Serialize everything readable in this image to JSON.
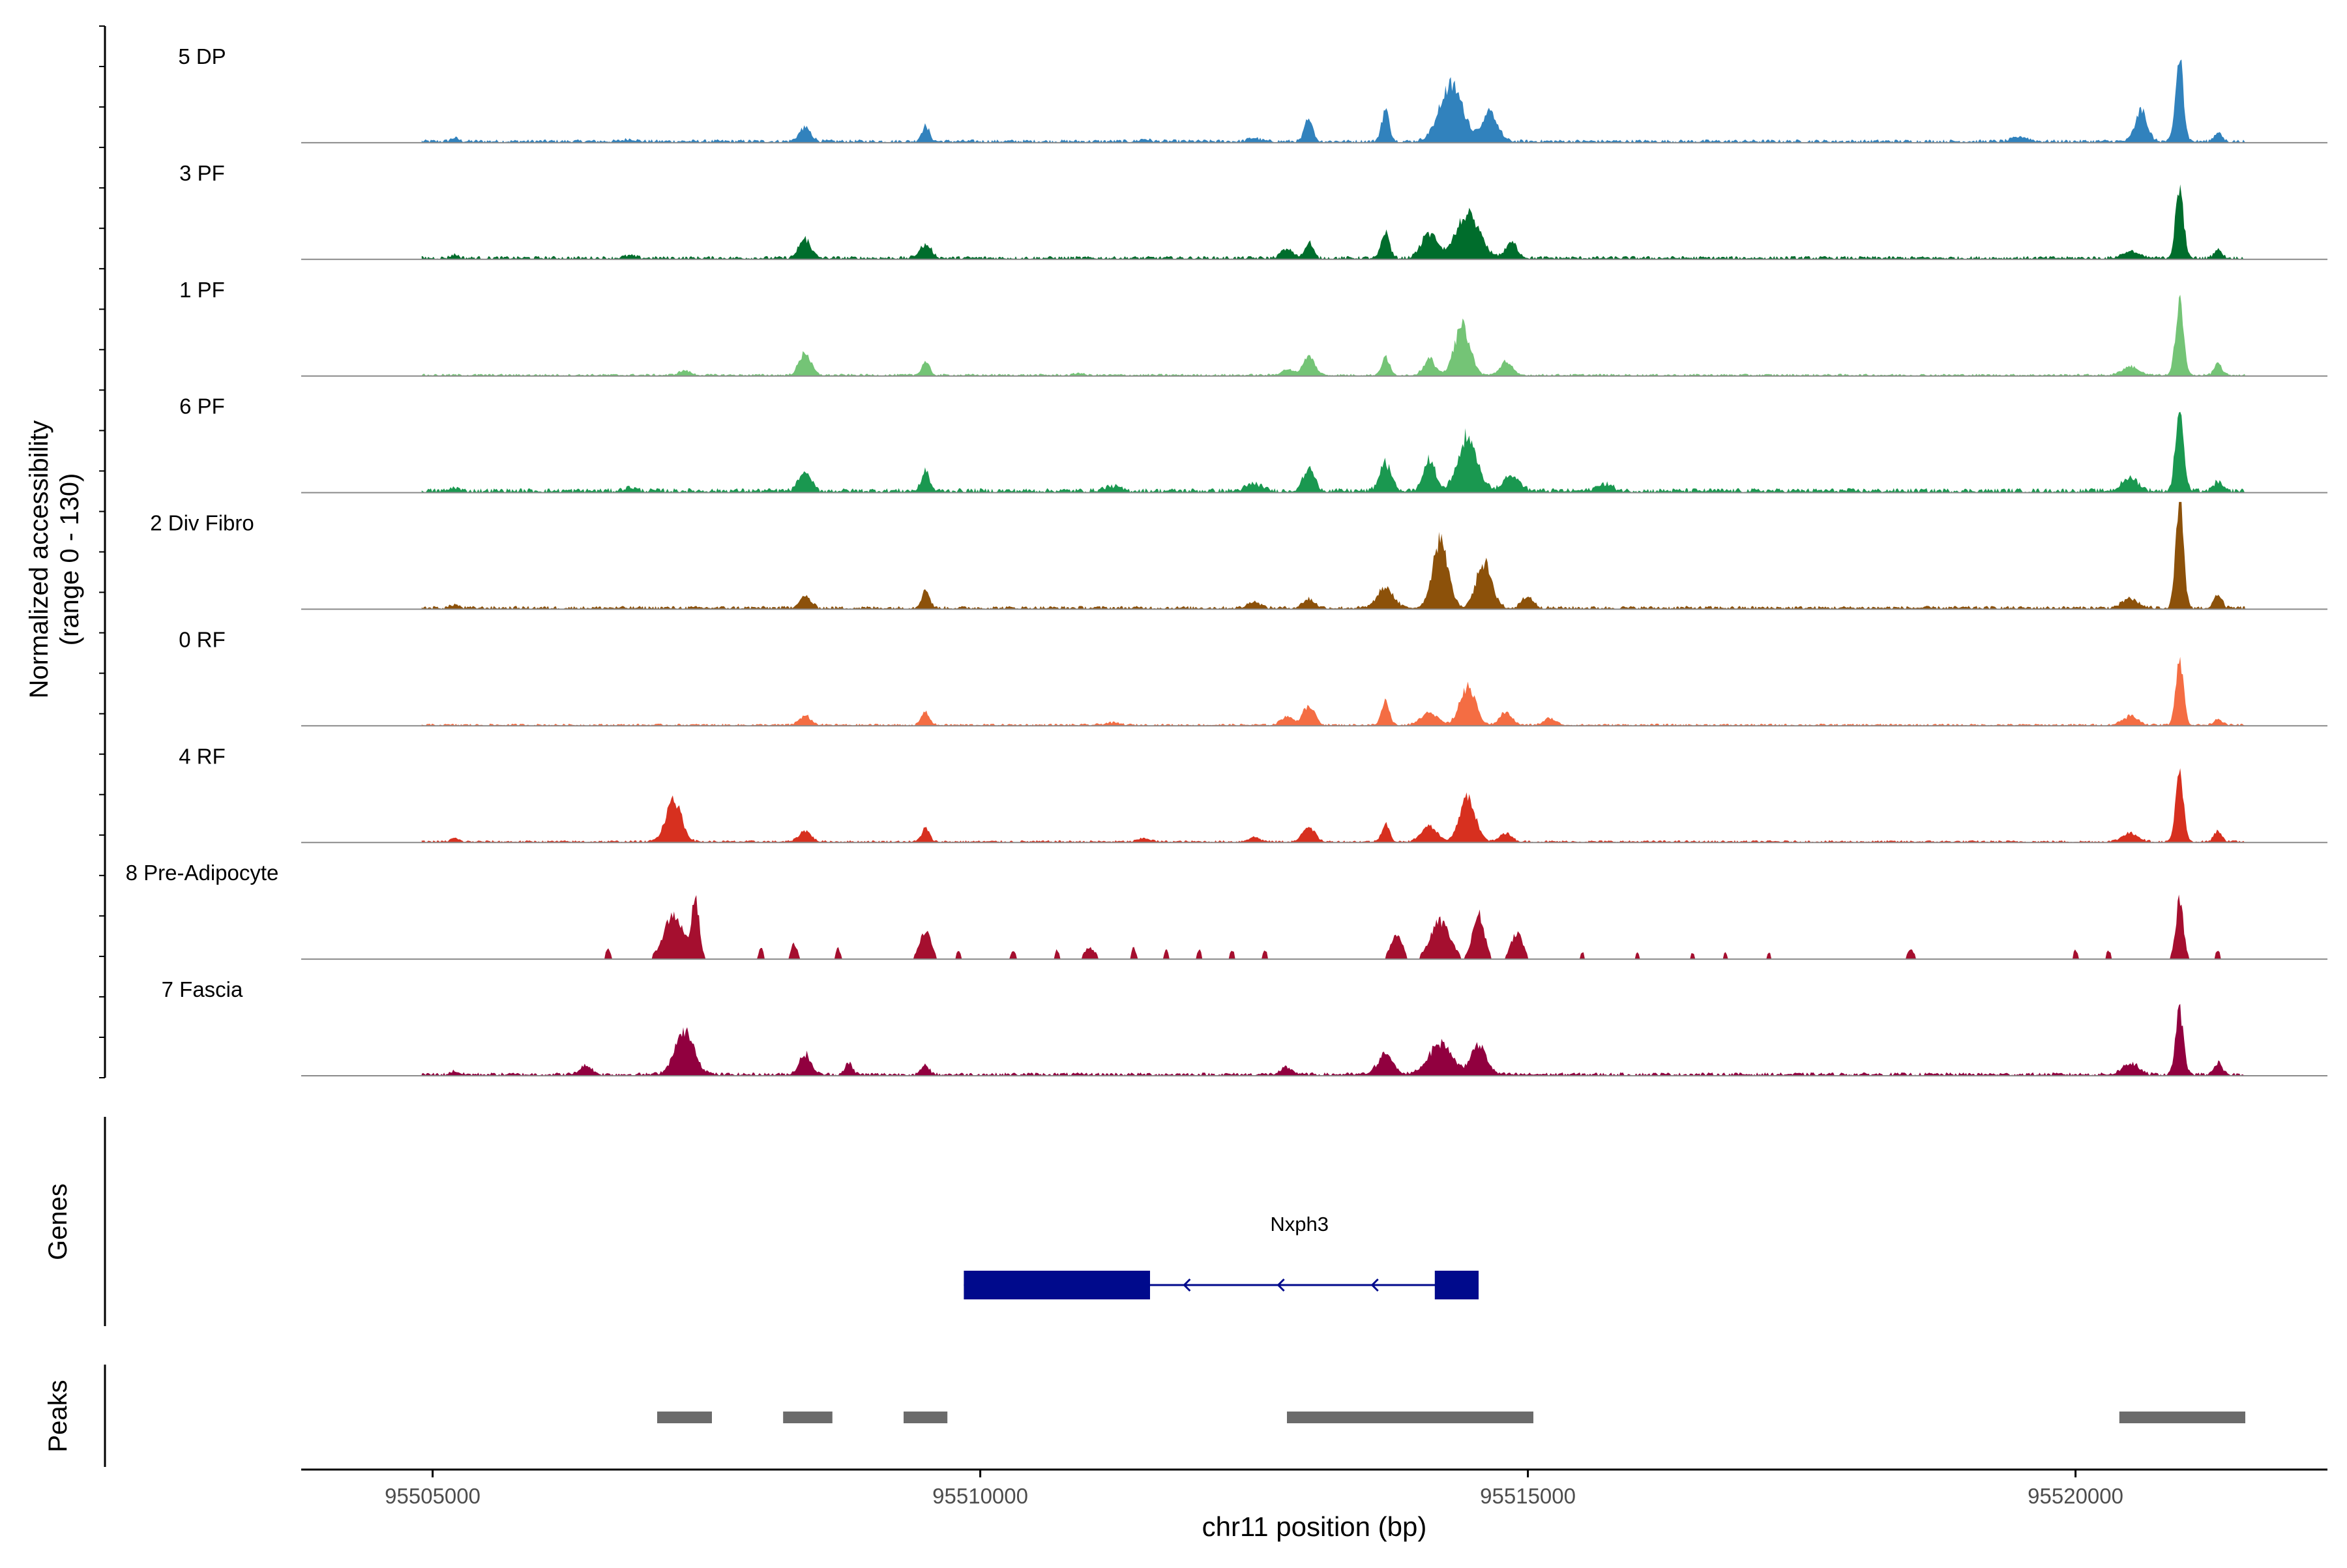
{
  "chart_data": {
    "type": "area",
    "title": "",
    "xlabel": "chr11 position (bp)",
    "ylabel_line1": "Normalized accessibility",
    "ylabel_line2": "(range 0 - 130)",
    "ylim": [
      0,
      130
    ],
    "xlim": [
      95503800,
      95522300
    ],
    "x_ticks": [
      95505000,
      95510000,
      95515000,
      95520000
    ],
    "x_tick_labels": [
      "95505000",
      "95510000",
      "95515000",
      "95520000"
    ],
    "genes_label": "Genes",
    "peaks_label": "Peaks",
    "gene": {
      "name": "Nxph3",
      "strand": "-",
      "start": 95509850,
      "end": 95514550,
      "exons": [
        [
          95509850,
          95511550
        ],
        [
          95514150,
          95514550
        ]
      ],
      "color": "#000a8c"
    },
    "peaks": [
      [
        95507050,
        95507550
      ],
      [
        95508200,
        95508650
      ],
      [
        95509300,
        95509700
      ],
      [
        95512800,
        95515050
      ],
      [
        95520400,
        95521550
      ]
    ],
    "peak_color": "#6b6b6b",
    "signal_start": 95504900,
    "signal_end": 95521550,
    "tracks": [
      {
        "name": "5 DP",
        "color": "#3182bd",
        "noise": 3,
        "background_extent": [
          95504900,
          95521550
        ],
        "peaks": [
          [
            95505200,
            100,
            3
          ],
          [
            95506800,
            150,
            2
          ],
          [
            95508400,
            150,
            12
          ],
          [
            95509500,
            100,
            14
          ],
          [
            95511500,
            120,
            2
          ],
          [
            95512500,
            150,
            3
          ],
          [
            95513000,
            100,
            22
          ],
          [
            95513700,
            100,
            28
          ],
          [
            95514300,
            300,
            50
          ],
          [
            95514650,
            200,
            25
          ],
          [
            95519500,
            200,
            4
          ],
          [
            95520600,
            150,
            28
          ],
          [
            95520950,
            100,
            75
          ],
          [
            95521300,
            100,
            8
          ]
        ]
      },
      {
        "name": "3 PF",
        "color": "#006d2c",
        "noise": 3,
        "background_extent": [
          95504900,
          95521550
        ],
        "peaks": [
          [
            95505200,
            100,
            3
          ],
          [
            95506800,
            150,
            2
          ],
          [
            95508400,
            150,
            17
          ],
          [
            95509500,
            150,
            12
          ],
          [
            95512800,
            150,
            8
          ],
          [
            95513000,
            100,
            15
          ],
          [
            95513700,
            100,
            24
          ],
          [
            95514100,
            200,
            22
          ],
          [
            95514450,
            300,
            38
          ],
          [
            95514850,
            150,
            14
          ],
          [
            95520500,
            200,
            6
          ],
          [
            95520950,
            100,
            65
          ],
          [
            95521300,
            100,
            8
          ]
        ]
      },
      {
        "name": "1 PF",
        "color": "#74c476",
        "noise": 2,
        "background_extent": [
          95504900,
          95521550
        ],
        "peaks": [
          [
            95507300,
            150,
            4
          ],
          [
            95508400,
            150,
            20
          ],
          [
            95509500,
            100,
            12
          ],
          [
            95510900,
            100,
            2
          ],
          [
            95512800,
            150,
            5
          ],
          [
            95513000,
            150,
            17
          ],
          [
            95513700,
            100,
            16
          ],
          [
            95514100,
            150,
            14
          ],
          [
            95514400,
            200,
            44
          ],
          [
            95514800,
            150,
            12
          ],
          [
            95520500,
            200,
            8
          ],
          [
            95520950,
            100,
            70
          ],
          [
            95521300,
            100,
            10
          ]
        ]
      },
      {
        "name": "6 PF",
        "color": "#1a9850",
        "noise": 4,
        "background_extent": [
          95504900,
          95521550
        ],
        "peaks": [
          [
            95505200,
            100,
            3
          ],
          [
            95506800,
            150,
            3
          ],
          [
            95508400,
            150,
            17
          ],
          [
            95509500,
            100,
            18
          ],
          [
            95511200,
            200,
            4
          ],
          [
            95512500,
            200,
            6
          ],
          [
            95513000,
            150,
            20
          ],
          [
            95513700,
            150,
            25
          ],
          [
            95514100,
            150,
            28
          ],
          [
            95514450,
            250,
            48
          ],
          [
            95514850,
            200,
            15
          ],
          [
            95515700,
            200,
            6
          ],
          [
            95520500,
            200,
            12
          ],
          [
            95520950,
            100,
            80
          ],
          [
            95521300,
            100,
            8
          ]
        ]
      },
      {
        "name": "2 Div Fibro",
        "color": "#8c510a",
        "noise": 3,
        "background_extent": [
          95504900,
          95521550
        ],
        "peaks": [
          [
            95505200,
            100,
            3
          ],
          [
            95508400,
            150,
            10
          ],
          [
            95509500,
            100,
            17
          ],
          [
            95512500,
            150,
            6
          ],
          [
            95513000,
            150,
            8
          ],
          [
            95513700,
            200,
            18
          ],
          [
            95514200,
            200,
            60
          ],
          [
            95514600,
            200,
            40
          ],
          [
            95515000,
            150,
            10
          ],
          [
            95520500,
            200,
            8
          ],
          [
            95520950,
            100,
            100
          ],
          [
            95521300,
            100,
            12
          ]
        ]
      },
      {
        "name": "0 RF",
        "color": "#f46d43",
        "noise": 2,
        "background_extent": [
          95504900,
          95521550
        ],
        "peaks": [
          [
            95508400,
            150,
            8
          ],
          [
            95509500,
            100,
            12
          ],
          [
            95511200,
            200,
            2
          ],
          [
            95512800,
            150,
            8
          ],
          [
            95513000,
            150,
            18
          ],
          [
            95513700,
            100,
            22
          ],
          [
            95514100,
            200,
            12
          ],
          [
            95514450,
            200,
            34
          ],
          [
            95514800,
            150,
            12
          ],
          [
            95515200,
            150,
            6
          ],
          [
            95520500,
            200,
            8
          ],
          [
            95520950,
            100,
            60
          ],
          [
            95521300,
            100,
            6
          ]
        ]
      },
      {
        "name": "4 RF",
        "color": "#d7301f",
        "noise": 2,
        "background_extent": [
          95504900,
          95521550
        ],
        "peaks": [
          [
            95505200,
            100,
            3
          ],
          [
            95507200,
            200,
            38
          ],
          [
            95508400,
            150,
            10
          ],
          [
            95509500,
            100,
            12
          ],
          [
            95511500,
            150,
            3
          ],
          [
            95512500,
            150,
            4
          ],
          [
            95513000,
            150,
            14
          ],
          [
            95513700,
            100,
            16
          ],
          [
            95514100,
            200,
            14
          ],
          [
            95514450,
            200,
            40
          ],
          [
            95514800,
            150,
            8
          ],
          [
            95520500,
            200,
            8
          ],
          [
            95520950,
            100,
            60
          ],
          [
            95521300,
            100,
            10
          ]
        ]
      },
      {
        "name": "8 Pre-Adipocyte",
        "color": "#a50f2f",
        "noise": 0,
        "background_extent": [
          95506400,
          95521550
        ],
        "peaks": [
          [
            95506600,
            60,
            10
          ],
          [
            95507200,
            250,
            40
          ],
          [
            95507400,
            100,
            50
          ],
          [
            95508000,
            60,
            10
          ],
          [
            95508300,
            80,
            14
          ],
          [
            95508700,
            60,
            10
          ],
          [
            95509500,
            150,
            24
          ],
          [
            95509800,
            60,
            8
          ],
          [
            95510300,
            60,
            8
          ],
          [
            95510700,
            60,
            8
          ],
          [
            95511000,
            150,
            10
          ],
          [
            95511400,
            60,
            10
          ],
          [
            95511700,
            60,
            8
          ],
          [
            95512000,
            60,
            8
          ],
          [
            95512300,
            60,
            8
          ],
          [
            95512600,
            60,
            8
          ],
          [
            95513800,
            150,
            22
          ],
          [
            95514200,
            250,
            34
          ],
          [
            95514550,
            150,
            40
          ],
          [
            95514900,
            150,
            24
          ],
          [
            95515500,
            60,
            6
          ],
          [
            95516000,
            60,
            6
          ],
          [
            95516500,
            60,
            6
          ],
          [
            95516800,
            60,
            6
          ],
          [
            95517200,
            60,
            6
          ],
          [
            95518500,
            100,
            8
          ],
          [
            95520000,
            60,
            8
          ],
          [
            95520300,
            60,
            8
          ],
          [
            95520950,
            100,
            52
          ],
          [
            95521300,
            60,
            8
          ]
        ]
      },
      {
        "name": "7 Fascia",
        "color": "#91003f",
        "noise": 3,
        "background_extent": [
          95504900,
          95521550
        ],
        "peaks": [
          [
            95505200,
            100,
            3
          ],
          [
            95506400,
            150,
            8
          ],
          [
            95507300,
            250,
            38
          ],
          [
            95508400,
            150,
            18
          ],
          [
            95508800,
            100,
            10
          ],
          [
            95509500,
            100,
            8
          ],
          [
            95512800,
            150,
            6
          ],
          [
            95513700,
            200,
            18
          ],
          [
            95514200,
            300,
            28
          ],
          [
            95514550,
            200,
            26
          ],
          [
            95520500,
            200,
            10
          ],
          [
            95520950,
            100,
            58
          ],
          [
            95521300,
            100,
            10
          ]
        ]
      }
    ]
  }
}
